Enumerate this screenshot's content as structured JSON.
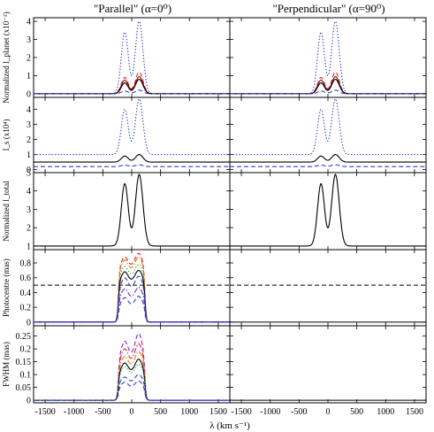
{
  "titles": {
    "left": "\"Parallel\" (α=0⁰)",
    "right": "\"Perpendicular\" (α=90⁰)"
  },
  "xaxis": {
    "label": "λ (km s⁻¹)",
    "range": [
      -1700,
      1700
    ],
    "ticks": [
      -1500,
      -1000,
      -500,
      0,
      500,
      1000,
      1500
    ]
  },
  "chart_data": [
    {
      "type": "line",
      "row": 1,
      "ylabel": "Normalized I_planet (x10⁻²)",
      "ylim": [
        -0.2,
        4.2
      ],
      "yticks": [
        0,
        1,
        2,
        3,
        4
      ],
      "profile_peaks": {
        "blue_peak_x": -120,
        "red_peak_x": 130
      },
      "series": [
        {
          "style": "dotted",
          "color": "#2d3fd0",
          "baseline": 0.0,
          "peak_blue": 3.4,
          "peak_red": 4.0,
          "dip": 1.7
        },
        {
          "style": "dashed",
          "color": "#dd2a1e",
          "baseline": 0.0,
          "peak_blue": 0.9,
          "peak_red": 1.2,
          "dip": 0.2
        },
        {
          "style": "solid",
          "color": "#8b0f0f",
          "baseline": 0.0,
          "peak_blue": 0.75,
          "peak_red": 0.95,
          "dip": 0.15
        },
        {
          "style": "solid",
          "color": "#000000",
          "baseline": 0.0,
          "peak_blue": 0.6,
          "peak_red": 0.8,
          "dip": 0.1
        },
        {
          "style": "dashed",
          "color": "#2d3fd0",
          "baseline": 0.0,
          "peak_blue": 0.15,
          "peak_red": 0.2,
          "dip": 0.05
        }
      ]
    },
    {
      "type": "line",
      "row": 2,
      "ylabel": "I_s (x10⁴)",
      "ylim": [
        -0.2,
        4.8
      ],
      "yticks": [
        0,
        1,
        2,
        3,
        4
      ],
      "profile_peaks": {
        "blue_peak_x": -120,
        "red_peak_x": 130
      },
      "series": [
        {
          "style": "dotted",
          "color": "#2d3fd0",
          "baseline": 1.0,
          "peak_blue": 4.0,
          "peak_red": 4.7,
          "dip": 2.3
        },
        {
          "style": "solid",
          "color": "#000000",
          "baseline": 0.5,
          "peak_blue": 0.9,
          "peak_red": 1.0,
          "dip": 0.55
        },
        {
          "style": "dashed",
          "color": "#2d3fd0",
          "baseline": 0.2,
          "peak_blue": 0.3,
          "peak_red": 0.32,
          "dip": 0.22
        }
      ]
    },
    {
      "type": "line",
      "row": 3,
      "ylabel": "Normalized I_total",
      "ylim": [
        0.8,
        5.0
      ],
      "yticks": [
        1,
        2,
        3,
        4,
        5
      ],
      "profile_peaks": {
        "blue_peak_x": -120,
        "red_peak_x": 130
      },
      "series": [
        {
          "style": "solid",
          "color": "#000000",
          "baseline": 1.0,
          "peak_blue": 4.4,
          "peak_red": 4.9,
          "dip": 1.1
        }
      ]
    },
    {
      "type": "line",
      "row": 4,
      "ylabel": "Photocentre (mas)",
      "ylim": [
        -0.05,
        0.98
      ],
      "yticks": [
        0,
        0.2,
        0.4,
        0.6,
        0.8
      ],
      "plateau_edges": [
        -230,
        230
      ],
      "reference_line": {
        "style": "dashed",
        "color": "#000000",
        "y": 0.5,
        "panels": [
          "left",
          "right"
        ]
      },
      "series": [
        {
          "style": "dashed",
          "color": "#dd2a1e",
          "peak_blue": 0.88,
          "peak_red": 0.93,
          "dip": 0.75
        },
        {
          "style": "dashdot",
          "color": "#dd7a1e",
          "peak_blue": 0.84,
          "peak_red": 0.88,
          "dip": 0.7
        },
        {
          "style": "dotted",
          "color": "#2db44a",
          "peak_blue": 0.75,
          "peak_red": 0.78,
          "dip": 0.62
        },
        {
          "style": "solid",
          "color": "#000000",
          "peak_blue": 0.68,
          "peak_red": 0.7,
          "dip": 0.55
        },
        {
          "style": "dashed",
          "color": "#2d3fd0",
          "peak_blue": 0.6,
          "peak_red": 0.62,
          "dip": 0.45
        },
        {
          "style": "dashdot",
          "color": "#6b2fd0",
          "peak_blue": 0.45,
          "peak_red": 0.47,
          "dip": 0.32
        },
        {
          "style": "dashed",
          "color": "#2d3fd0",
          "peak_blue": 0.33,
          "peak_red": 0.35,
          "dip": 0.22
        }
      ]
    },
    {
      "type": "line",
      "row": 5,
      "ylabel": "FWHM (mas)",
      "ylim": [
        -0.01,
        0.29
      ],
      "yticks": [
        0,
        0.05,
        0.1,
        0.15,
        0.2,
        0.25
      ],
      "plateau_edges": [
        -230,
        230
      ],
      "series": [
        {
          "style": "dashed",
          "color": "#8a1fd0",
          "peak_blue": 0.23,
          "peak_red": 0.26,
          "dip": 0.17
        },
        {
          "style": "dashdot",
          "color": "#dd2a1e",
          "peak_blue": 0.2,
          "peak_red": 0.22,
          "dip": 0.15
        },
        {
          "style": "dashdot",
          "color": "#dd7a1e",
          "peak_blue": 0.17,
          "peak_red": 0.19,
          "dip": 0.13
        },
        {
          "style": "solid",
          "color": "#000000",
          "peak_blue": 0.145,
          "peak_red": 0.16,
          "dip": 0.11
        },
        {
          "style": "dotted",
          "color": "#2db44a",
          "peak_blue": 0.13,
          "peak_red": 0.14,
          "dip": 0.1
        },
        {
          "style": "dashed",
          "color": "#2d3fd0",
          "peak_blue": 0.09,
          "peak_red": 0.1,
          "dip": 0.07
        },
        {
          "style": "dashed",
          "color": "#2d3fd0",
          "peak_blue": 0.07,
          "peak_red": 0.075,
          "dip": 0.05
        }
      ]
    }
  ]
}
